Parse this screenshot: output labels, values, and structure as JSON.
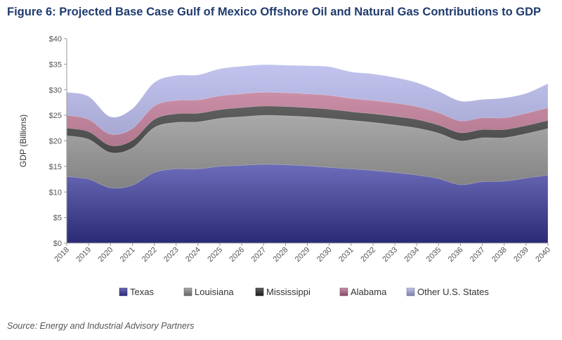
{
  "figure": {
    "title": "Figure 6: Projected Base Case Gulf of Mexico Offshore Oil and Natural Gas Contributions to GDP",
    "source": "Source: Energy and Industrial Advisory Partners"
  },
  "chart_data": {
    "type": "area",
    "stacked": true,
    "ylabel": "GDP (Billions)",
    "ylim": [
      0,
      40
    ],
    "yticks": [
      0,
      5,
      10,
      15,
      20,
      25,
      30,
      35,
      40
    ],
    "ytick_labels": [
      "$0",
      "$5",
      "$10",
      "$15",
      "$20",
      "$25",
      "$30",
      "$35",
      "$40"
    ],
    "grid": false,
    "legend_position": "bottom",
    "categories": [
      "2018",
      "2019",
      "2020",
      "2021",
      "2022",
      "2023",
      "2024",
      "2025",
      "2026",
      "2027",
      "2028",
      "2029",
      "2030",
      "2031",
      "2032",
      "2033",
      "2034",
      "2035",
      "2036",
      "2037",
      "2038",
      "2039",
      "2040"
    ],
    "series": [
      {
        "name": "Texas",
        "color": "#3b3ba3",
        "values": [
          13.0,
          12.5,
          10.8,
          11.3,
          13.8,
          14.5,
          14.5,
          15.0,
          15.2,
          15.4,
          15.3,
          15.1,
          14.8,
          14.5,
          14.2,
          13.8,
          13.3,
          12.6,
          11.4,
          12.0,
          12.1,
          12.7,
          13.3
        ]
      },
      {
        "name": "Louisiana",
        "color": "#8c8c8c",
        "values": [
          8.0,
          7.8,
          6.9,
          7.3,
          8.8,
          9.1,
          9.2,
          9.4,
          9.5,
          9.6,
          9.6,
          9.6,
          9.6,
          9.5,
          9.4,
          9.3,
          9.2,
          8.9,
          8.6,
          8.6,
          8.5,
          8.7,
          9.1
        ]
      },
      {
        "name": "Mississippi",
        "color": "#2a2a2a",
        "values": [
          1.5,
          1.5,
          1.4,
          1.5,
          1.6,
          1.7,
          1.7,
          1.7,
          1.8,
          1.8,
          1.8,
          1.8,
          1.8,
          1.7,
          1.7,
          1.7,
          1.7,
          1.6,
          1.6,
          1.6,
          1.6,
          1.6,
          1.6
        ]
      },
      {
        "name": "Alabama",
        "color": "#b86a8a",
        "values": [
          2.5,
          2.4,
          2.2,
          2.3,
          2.6,
          2.6,
          2.6,
          2.7,
          2.7,
          2.7,
          2.7,
          2.7,
          2.7,
          2.6,
          2.6,
          2.6,
          2.5,
          2.4,
          2.3,
          2.3,
          2.3,
          2.4,
          2.5
        ]
      },
      {
        "name": "Other U.S. States",
        "color": "#aeb0ea",
        "values": [
          4.5,
          4.5,
          3.4,
          3.9,
          4.6,
          4.9,
          4.9,
          5.3,
          5.4,
          5.4,
          5.4,
          5.5,
          5.6,
          5.2,
          5.2,
          5.0,
          4.7,
          4.2,
          3.9,
          3.6,
          3.9,
          3.9,
          4.7
        ]
      }
    ]
  }
}
